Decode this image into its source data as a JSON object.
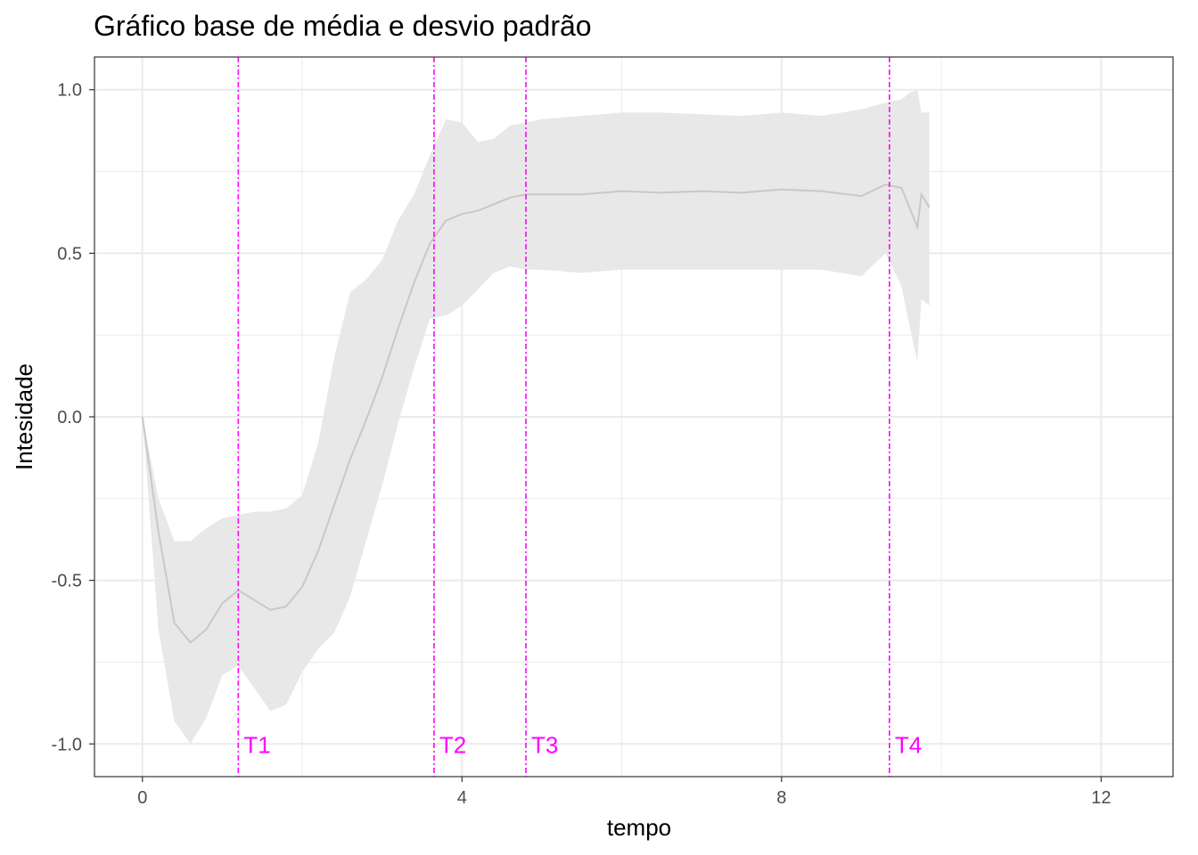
{
  "chart_data": {
    "type": "area",
    "title": "Gráfico base de média e desvio padrão",
    "xlabel": "tempo",
    "ylabel": "Intesidade",
    "xlim": [
      -0.6,
      12.9
    ],
    "ylim": [
      -1.1,
      1.1
    ],
    "x_ticks": [
      0,
      4,
      8,
      12
    ],
    "x_tick_labels": [
      "0",
      "4",
      "8",
      "12"
    ],
    "x_minor_ticks": [
      2,
      6,
      10
    ],
    "y_ticks": [
      -1.0,
      -0.5,
      0.0,
      0.5,
      1.0
    ],
    "y_tick_labels": [
      "-1.0",
      "-0.5",
      "0.0",
      "0.5",
      "1.0"
    ],
    "y_minor_ticks": [
      -0.75,
      -0.25,
      0.25,
      0.75
    ],
    "grid": true,
    "colors": {
      "band": "#e8e8e8",
      "mean_line": "#c8c8c8",
      "vlines": "#ff00ff",
      "grid": "#ebebeb",
      "panel_border": "#333333"
    },
    "series": [
      {
        "role": "mean",
        "x": [
          0.0,
          0.2,
          0.4,
          0.6,
          0.8,
          1.0,
          1.2,
          1.4,
          1.6,
          1.8,
          2.0,
          2.2,
          2.4,
          2.6,
          2.8,
          3.0,
          3.2,
          3.4,
          3.6,
          3.8,
          4.0,
          4.2,
          4.4,
          4.6,
          4.8,
          5.0,
          5.5,
          6.0,
          6.5,
          7.0,
          7.5,
          8.0,
          8.5,
          9.0,
          9.3,
          9.5,
          9.7,
          9.75,
          9.85
        ],
        "y": [
          0.0,
          -0.35,
          -0.63,
          -0.69,
          -0.65,
          -0.57,
          -0.53,
          -0.56,
          -0.59,
          -0.58,
          -0.52,
          -0.41,
          -0.27,
          -0.13,
          -0.01,
          0.12,
          0.27,
          0.41,
          0.53,
          0.6,
          0.62,
          0.63,
          0.65,
          0.67,
          0.68,
          0.68,
          0.68,
          0.69,
          0.685,
          0.69,
          0.685,
          0.695,
          0.69,
          0.675,
          0.71,
          0.7,
          0.58,
          0.68,
          0.64
        ]
      },
      {
        "role": "upper",
        "x": [
          0.0,
          0.2,
          0.4,
          0.6,
          0.8,
          1.0,
          1.2,
          1.4,
          1.6,
          1.8,
          2.0,
          2.2,
          2.4,
          2.6,
          2.8,
          3.0,
          3.2,
          3.4,
          3.6,
          3.8,
          4.0,
          4.2,
          4.4,
          4.6,
          4.8,
          5.0,
          5.5,
          6.0,
          6.5,
          7.0,
          7.5,
          8.0,
          8.5,
          9.0,
          9.3,
          9.5,
          9.6,
          9.7,
          9.75,
          9.85
        ],
        "y": [
          0.0,
          -0.25,
          -0.38,
          -0.38,
          -0.34,
          -0.31,
          -0.3,
          -0.29,
          -0.29,
          -0.28,
          -0.24,
          -0.08,
          0.18,
          0.38,
          0.42,
          0.48,
          0.6,
          0.68,
          0.8,
          0.91,
          0.9,
          0.84,
          0.85,
          0.89,
          0.9,
          0.91,
          0.92,
          0.93,
          0.93,
          0.925,
          0.92,
          0.93,
          0.92,
          0.94,
          0.96,
          0.97,
          0.99,
          1.0,
          0.93,
          0.93
        ]
      },
      {
        "role": "lower",
        "x": [
          0.0,
          0.2,
          0.4,
          0.6,
          0.8,
          1.0,
          1.2,
          1.4,
          1.6,
          1.8,
          2.0,
          2.2,
          2.4,
          2.6,
          2.8,
          3.0,
          3.2,
          3.4,
          3.6,
          3.8,
          4.0,
          4.2,
          4.4,
          4.6,
          4.8,
          5.0,
          5.5,
          6.0,
          6.5,
          7.0,
          7.5,
          8.0,
          8.5,
          9.0,
          9.3,
          9.5,
          9.6,
          9.7,
          9.75,
          9.85
        ],
        "y": [
          0.0,
          -0.65,
          -0.93,
          -1.0,
          -0.92,
          -0.79,
          -0.76,
          -0.83,
          -0.9,
          -0.88,
          -0.78,
          -0.71,
          -0.66,
          -0.55,
          -0.38,
          -0.21,
          -0.02,
          0.15,
          0.3,
          0.31,
          0.34,
          0.39,
          0.44,
          0.46,
          0.45,
          0.45,
          0.44,
          0.45,
          0.45,
          0.45,
          0.45,
          0.45,
          0.45,
          0.43,
          0.5,
          0.4,
          0.28,
          0.17,
          0.36,
          0.34
        ]
      }
    ],
    "vlines": [
      {
        "x": 1.2,
        "label": "T1"
      },
      {
        "x": 3.65,
        "label": "T2"
      },
      {
        "x": 4.8,
        "label": "T3"
      },
      {
        "x": 9.35,
        "label": "T4"
      }
    ]
  }
}
